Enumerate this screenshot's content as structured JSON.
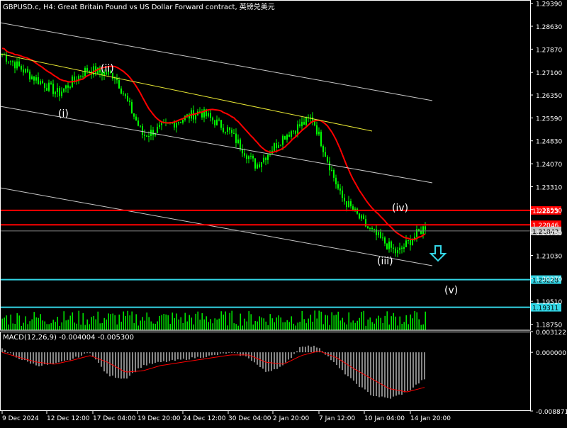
{
  "header": {
    "title": "GBPUSD.c, H4:  Great Britain Pound vs US Dollar Forward contract, 英镑兑美元"
  },
  "colors": {
    "background": "#000000",
    "grid": "#3c3c3c",
    "axis": "#ffffff",
    "candle": "#00ff00",
    "ma": "#ff0000",
    "channel": "#c8c8c8",
    "trendline": "#e6e633",
    "resistance": "#ff0000",
    "support": "#33d6e6",
    "volume": "#00ff00",
    "macd_hist": "#c0c0c0",
    "macd_signal": "#ff0000",
    "price_marker_bg": "#ff0000",
    "bid_marker_bg": "#c0c0c0"
  },
  "chart_data": [
    {
      "type": "candlestick",
      "symbol": "GBPUSD.c",
      "timeframe": "H4",
      "y_ticks": [
        "1.29390",
        "1.28630",
        "1.27870",
        "1.27100",
        "1.26350",
        "1.25590",
        "1.24830",
        "1.24070",
        "1.23310",
        "1.22550",
        "1.21790",
        "1.21030",
        "1.20270",
        "1.19510",
        "1.18750"
      ],
      "ylim": [
        1.1855,
        1.295
      ],
      "x_ticks": [
        "9 Dec 2024",
        "12 Dec 12:00",
        "17 Dec 04:00",
        "19 Dec 20:00",
        "24 Dec 12:00",
        "30 Dec 04:00",
        "2 Jan 20:00",
        "7 Jan 12:00",
        "10 Jan 04:00",
        "14 Jan 20:00"
      ],
      "moving_average": "red",
      "approx_close_path": [
        {
          "x": "9 Dec 2024",
          "y": 1.277
        },
        {
          "x": "12 Dec 12:00",
          "y": 1.27
        },
        {
          "x": "13 Dec",
          "y": 1.264
        },
        {
          "x": "17 Dec 04:00",
          "y": 1.272
        },
        {
          "x": "18 Dec",
          "y": 1.27
        },
        {
          "x": "19 Dec 20:00",
          "y": 1.25
        },
        {
          "x": "24 Dec 12:00",
          "y": 1.254
        },
        {
          "x": "30 Dec 04:00",
          "y": 1.258
        },
        {
          "x": "31 Dec",
          "y": 1.252
        },
        {
          "x": "2 Jan 20:00",
          "y": 1.24
        },
        {
          "x": "6 Jan",
          "y": 1.25
        },
        {
          "x": "7 Jan 12:00",
          "y": 1.256
        },
        {
          "x": "9 Jan",
          "y": 1.23
        },
        {
          "x": "10 Jan 04:00",
          "y": 1.219
        },
        {
          "x": "13 Jan",
          "y": 1.211
        },
        {
          "x": "14 Jan 20:00",
          "y": 1.22
        }
      ],
      "horizontal_levels": [
        {
          "label": "1.22523",
          "price": 1.22523,
          "color": "red"
        },
        {
          "label": "1.22046",
          "price": 1.22046,
          "color": "red"
        },
        {
          "label": "1.20228",
          "price": 1.20228,
          "color": "cyan"
        },
        {
          "label": "1.19311",
          "price": 1.19311,
          "color": "cyan"
        }
      ],
      "bid_label": "1.21843",
      "wave_labels": [
        "(i)",
        "(ii)",
        "(iii)",
        "(iv)",
        "(v)"
      ]
    },
    {
      "type": "bar",
      "name": "MACD(12,26,9) -0.004004 -0.005300",
      "indicator_label": "MACD(12,26,9) -0.004004 -0.005300",
      "y_ticks": [
        "0.003122",
        "0.000000",
        "-0.008871"
      ],
      "ylim": [
        -0.008871,
        0.003122
      ],
      "histogram_path": [
        0.0005,
        -0.001,
        -0.002,
        -0.0018,
        -0.001,
        0.0,
        -0.0035,
        -0.004,
        -0.002,
        -0.0015,
        -0.0012,
        -0.0008,
        -0.0005,
        0.0,
        -0.0008,
        -0.003,
        -0.002,
        0.001,
        0.0008,
        -0.002,
        -0.0045,
        -0.0065,
        -0.007,
        -0.006,
        -0.004
      ],
      "signal_path": [
        0.0,
        -0.0008,
        -0.0015,
        -0.0018,
        -0.0012,
        -0.0005,
        -0.0015,
        -0.003,
        -0.0028,
        -0.002,
        -0.0016,
        -0.0012,
        -0.0008,
        -0.0004,
        -0.0004,
        -0.0015,
        -0.0018,
        -0.0005,
        0.0002,
        -0.0008,
        -0.0025,
        -0.004,
        -0.0055,
        -0.006,
        -0.0053
      ]
    }
  ]
}
